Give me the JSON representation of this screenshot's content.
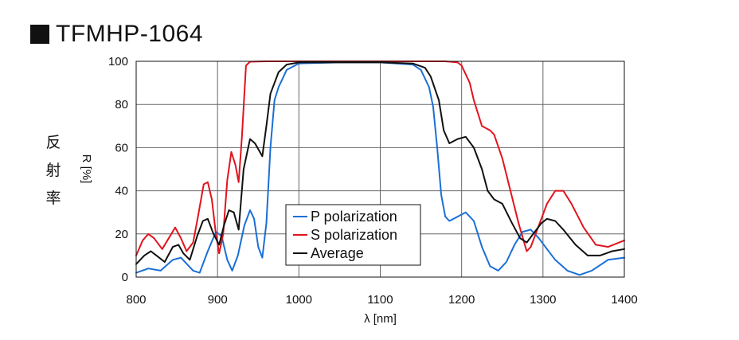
{
  "title": "TFMHP-1064",
  "side_label_chars": [
    "反",
    "射",
    "率"
  ],
  "chart_data": {
    "type": "line",
    "title": "TFMHP-1064",
    "xlabel": "λ [nm]",
    "ylabel": "R [%]",
    "xlim": [
      800,
      1400
    ],
    "ylim": [
      0,
      100
    ],
    "xticks": [
      800,
      900,
      1000,
      1100,
      1200,
      1300,
      1400
    ],
    "yticks": [
      0,
      20,
      40,
      60,
      80,
      100
    ],
    "grid": true,
    "legend_position": "center-bottom",
    "series": [
      {
        "name": "P polarization",
        "color": "#1a6fd6",
        "points": [
          [
            800,
            2
          ],
          [
            815,
            4
          ],
          [
            830,
            3
          ],
          [
            845,
            8
          ],
          [
            855,
            9
          ],
          [
            870,
            3
          ],
          [
            878,
            2
          ],
          [
            888,
            12
          ],
          [
            898,
            21
          ],
          [
            905,
            19
          ],
          [
            912,
            8
          ],
          [
            918,
            3
          ],
          [
            925,
            10
          ],
          [
            933,
            24
          ],
          [
            940,
            31
          ],
          [
            945,
            27
          ],
          [
            950,
            14
          ],
          [
            955,
            9
          ],
          [
            960,
            25
          ],
          [
            965,
            60
          ],
          [
            970,
            82
          ],
          [
            975,
            88
          ],
          [
            985,
            96
          ],
          [
            1000,
            99
          ],
          [
            1050,
            99.5
          ],
          [
            1100,
            99.5
          ],
          [
            1140,
            98.5
          ],
          [
            1150,
            96
          ],
          [
            1160,
            88
          ],
          [
            1165,
            79
          ],
          [
            1170,
            60
          ],
          [
            1175,
            38
          ],
          [
            1180,
            28
          ],
          [
            1185,
            26
          ],
          [
            1195,
            28
          ],
          [
            1205,
            30
          ],
          [
            1215,
            26
          ],
          [
            1225,
            14
          ],
          [
            1235,
            5
          ],
          [
            1245,
            3
          ],
          [
            1255,
            7
          ],
          [
            1265,
            15
          ],
          [
            1275,
            21
          ],
          [
            1285,
            22
          ],
          [
            1295,
            18
          ],
          [
            1305,
            13
          ],
          [
            1315,
            8
          ],
          [
            1330,
            3
          ],
          [
            1345,
            1
          ],
          [
            1360,
            3
          ],
          [
            1380,
            8
          ],
          [
            1400,
            9
          ]
        ]
      },
      {
        "name": "S polarization",
        "color": "#e1141e",
        "points": [
          [
            800,
            10
          ],
          [
            808,
            17
          ],
          [
            815,
            20
          ],
          [
            822,
            18
          ],
          [
            832,
            13
          ],
          [
            840,
            18
          ],
          [
            848,
            23
          ],
          [
            855,
            18
          ],
          [
            862,
            12
          ],
          [
            870,
            16
          ],
          [
            876,
            28
          ],
          [
            883,
            43
          ],
          [
            888,
            44
          ],
          [
            893,
            36
          ],
          [
            898,
            20
          ],
          [
            902,
            11
          ],
          [
            907,
            20
          ],
          [
            912,
            45
          ],
          [
            917,
            58
          ],
          [
            922,
            52
          ],
          [
            926,
            44
          ],
          [
            930,
            65
          ],
          [
            935,
            98
          ],
          [
            940,
            99.8
          ],
          [
            960,
            100
          ],
          [
            1000,
            100
          ],
          [
            1100,
            100
          ],
          [
            1180,
            100
          ],
          [
            1195,
            99.5
          ],
          [
            1200,
            98
          ],
          [
            1210,
            90
          ],
          [
            1215,
            82
          ],
          [
            1225,
            70
          ],
          [
            1235,
            68
          ],
          [
            1240,
            66
          ],
          [
            1250,
            55
          ],
          [
            1260,
            40
          ],
          [
            1270,
            25
          ],
          [
            1280,
            12
          ],
          [
            1285,
            14
          ],
          [
            1295,
            24
          ],
          [
            1305,
            34
          ],
          [
            1315,
            40
          ],
          [
            1325,
            40
          ],
          [
            1335,
            34
          ],
          [
            1350,
            23
          ],
          [
            1365,
            15
          ],
          [
            1380,
            14
          ],
          [
            1400,
            17
          ]
        ]
      },
      {
        "name": "Average",
        "color": "#111111",
        "points": [
          [
            800,
            6
          ],
          [
            810,
            10
          ],
          [
            818,
            12
          ],
          [
            825,
            10
          ],
          [
            835,
            7
          ],
          [
            845,
            14
          ],
          [
            852,
            15
          ],
          [
            858,
            11
          ],
          [
            866,
            8
          ],
          [
            875,
            19
          ],
          [
            882,
            26
          ],
          [
            888,
            27
          ],
          [
            895,
            20
          ],
          [
            902,
            15
          ],
          [
            908,
            24
          ],
          [
            914,
            31
          ],
          [
            920,
            30
          ],
          [
            926,
            22
          ],
          [
            932,
            50
          ],
          [
            940,
            64
          ],
          [
            946,
            62
          ],
          [
            955,
            56
          ],
          [
            960,
            70
          ],
          [
            965,
            85
          ],
          [
            975,
            95
          ],
          [
            985,
            98.5
          ],
          [
            1000,
            99.5
          ],
          [
            1100,
            99.5
          ],
          [
            1140,
            99
          ],
          [
            1155,
            97
          ],
          [
            1162,
            93
          ],
          [
            1172,
            82
          ],
          [
            1178,
            68
          ],
          [
            1185,
            62
          ],
          [
            1195,
            64
          ],
          [
            1205,
            65
          ],
          [
            1215,
            60
          ],
          [
            1225,
            50
          ],
          [
            1232,
            40
          ],
          [
            1240,
            36
          ],
          [
            1250,
            34
          ],
          [
            1262,
            25
          ],
          [
            1272,
            18
          ],
          [
            1280,
            16
          ],
          [
            1290,
            21
          ],
          [
            1298,
            25
          ],
          [
            1305,
            27
          ],
          [
            1315,
            26
          ],
          [
            1325,
            22
          ],
          [
            1340,
            15
          ],
          [
            1355,
            10
          ],
          [
            1370,
            10
          ],
          [
            1385,
            12
          ],
          [
            1400,
            13
          ]
        ]
      }
    ]
  }
}
